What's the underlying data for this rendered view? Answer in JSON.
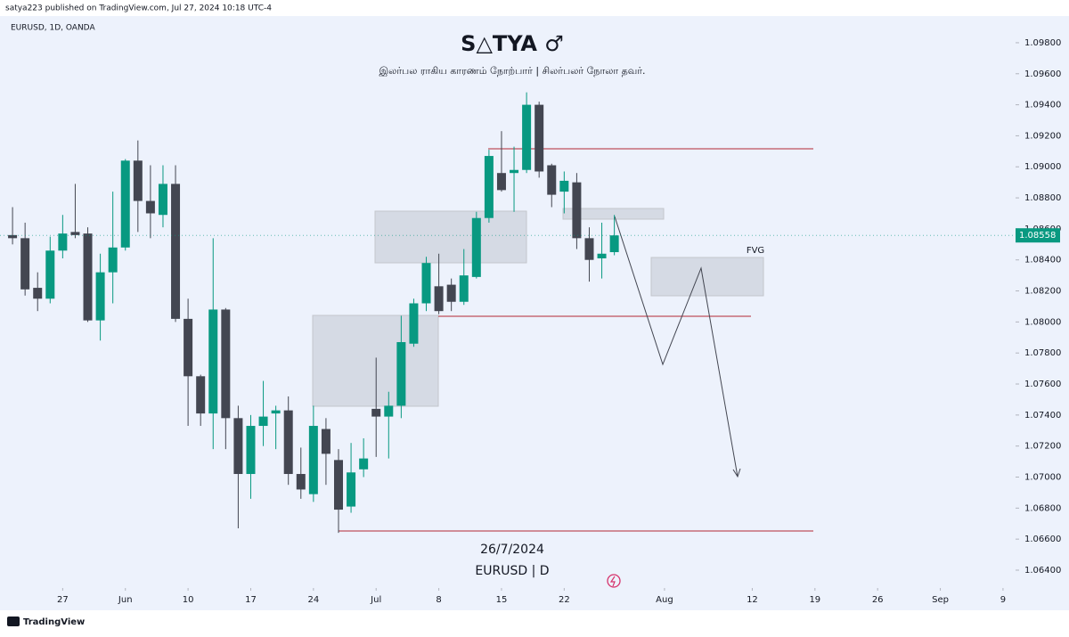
{
  "header": {
    "published": "satya223 published on TradingView.com, Jul 27, 2024 10:18 UTC-4",
    "symbol": "EURUSD, 1D, OANDA"
  },
  "chart_data": {
    "type": "candlestick",
    "title": "S△TYA ♂",
    "subtitle": "இலர்பல ராகிய காரணம் நோற்பார் | சிலர்பலர் நோலா தவர்.",
    "annotations": {
      "date": "26/7/2024",
      "pair": "EURUSD | D",
      "zone": "FVG"
    },
    "series": [
      {
        "name": "EURUSD",
        "up_color": "#089981",
        "down_color": "#434651",
        "open": [
          1.0856,
          1.0854,
          1.0822,
          1.0815,
          1.0846,
          1.0858,
          1.0857,
          1.0801,
          1.0832,
          1.0848,
          1.0904,
          1.0878,
          1.0869,
          1.0889,
          1.0802,
          1.0765,
          1.0741,
          1.0808,
          1.0738,
          1.0702,
          1.0733,
          1.0741,
          1.0743,
          1.0702,
          1.0689,
          1.0731,
          1.0711,
          1.0681,
          1.0705,
          1.0744,
          1.0739,
          1.0746,
          1.0786,
          1.0812,
          1.0823,
          1.0824,
          1.0813,
          1.0829,
          1.0867,
          1.0896,
          1.0896,
          1.0898,
          1.094,
          1.0901,
          1.0884,
          1.089,
          1.0854,
          1.0841,
          1.0845
        ],
        "high": [
          1.0874,
          1.0864,
          1.0832,
          1.0855,
          1.0869,
          1.0889,
          1.0861,
          1.0844,
          1.0884,
          1.0905,
          1.0917,
          1.0901,
          1.0901,
          1.0901,
          1.0815,
          1.0766,
          1.0854,
          1.0809,
          1.0746,
          1.074,
          1.0762,
          1.0746,
          1.0752,
          1.0719,
          1.0746,
          1.0738,
          1.0718,
          1.0722,
          1.0725,
          1.0777,
          1.0755,
          1.0804,
          1.0815,
          1.0842,
          1.0844,
          1.0828,
          1.0847,
          1.0871,
          1.0911,
          1.0923,
          1.0913,
          1.0948,
          1.0942,
          1.0902,
          1.0897,
          1.0896,
          1.0861,
          1.0864,
          1.0869
        ],
        "low": [
          1.085,
          1.0817,
          1.0807,
          1.0812,
          1.0841,
          1.0854,
          1.08,
          1.0788,
          1.0812,
          1.0846,
          1.0858,
          1.0854,
          1.0861,
          1.08,
          1.0733,
          1.0733,
          1.0718,
          1.0718,
          1.0667,
          1.0686,
          1.072,
          1.0718,
          1.0695,
          1.0686,
          1.0684,
          1.0695,
          1.0664,
          1.0677,
          1.07,
          1.0713,
          1.0712,
          1.0738,
          1.0784,
          1.0807,
          1.0805,
          1.0807,
          1.0811,
          1.0828,
          1.0864,
          1.0884,
          1.0871,
          1.0896,
          1.0893,
          1.0874,
          1.087,
          1.0847,
          1.0826,
          1.0828,
          1.0843
        ],
        "close": [
          1.0854,
          1.0821,
          1.0815,
          1.0846,
          1.0857,
          1.0856,
          1.0801,
          1.0832,
          1.0848,
          1.0904,
          1.0878,
          1.087,
          1.0889,
          1.0802,
          1.0765,
          1.0741,
          1.0808,
          1.0738,
          1.0702,
          1.0733,
          1.0739,
          1.0743,
          1.0702,
          1.0692,
          1.0733,
          1.0715,
          1.0679,
          1.0703,
          1.0712,
          1.0739,
          1.0746,
          1.0787,
          1.0812,
          1.0838,
          1.0807,
          1.0813,
          1.083,
          1.0867,
          1.0907,
          1.0885,
          1.0898,
          1.094,
          1.0897,
          1.0882,
          1.0891,
          1.0854,
          1.084,
          1.0844,
          1.08558
        ]
      }
    ],
    "last_price": {
      "value": 1.08558,
      "label": "1.08558"
    },
    "ylim": [
      1.06285,
      1.09972
    ],
    "yticks": [
      {
        "value": 1.064,
        "label": "1.06400"
      },
      {
        "value": 1.066,
        "label": "1.06600"
      },
      {
        "value": 1.068,
        "label": "1.06800"
      },
      {
        "value": 1.07,
        "label": "1.07000"
      },
      {
        "value": 1.072,
        "label": "1.07200"
      },
      {
        "value": 1.074,
        "label": "1.07400"
      },
      {
        "value": 1.076,
        "label": "1.07600"
      },
      {
        "value": 1.078,
        "label": "1.07800"
      },
      {
        "value": 1.08,
        "label": "1.08000"
      },
      {
        "value": 1.082,
        "label": "1.08200"
      },
      {
        "value": 1.084,
        "label": "1.08400"
      },
      {
        "value": 1.086,
        "label": "1.08600"
      },
      {
        "value": 1.088,
        "label": "1.08800"
      },
      {
        "value": 1.09,
        "label": "1.09000"
      },
      {
        "value": 1.092,
        "label": "1.09200"
      },
      {
        "value": 1.094,
        "label": "1.09400"
      },
      {
        "value": 1.096,
        "label": "1.09600"
      },
      {
        "value": 1.098,
        "label": "1.09800"
      }
    ],
    "xlim": [
      -1,
      80
    ],
    "xticks": [
      {
        "value": 4,
        "label": "27"
      },
      {
        "value": 9,
        "label": "Jun"
      },
      {
        "value": 14,
        "label": "10"
      },
      {
        "value": 19,
        "label": "17"
      },
      {
        "value": 24,
        "label": "24"
      },
      {
        "value": 29,
        "label": "Jul"
      },
      {
        "value": 34,
        "label": "8"
      },
      {
        "value": 39,
        "label": "15"
      },
      {
        "value": 44,
        "label": "22"
      },
      {
        "value": 52,
        "label": "Aug"
      },
      {
        "value": 59,
        "label": "12"
      },
      {
        "value": 64,
        "label": "19"
      },
      {
        "value": 69,
        "label": "26"
      },
      {
        "value": 74,
        "label": "Sep"
      },
      {
        "value": 79,
        "label": "9"
      }
    ]
  },
  "footer": {
    "brand": "TradingView"
  }
}
